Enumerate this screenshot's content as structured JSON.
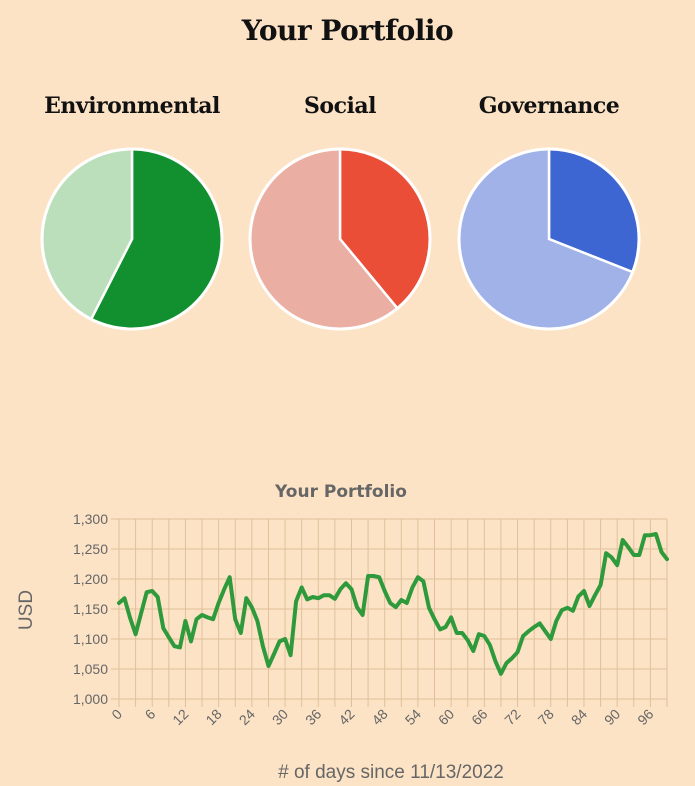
{
  "page_title": "Your Portfolio",
  "colors": {
    "background": "#fde3c6",
    "environmental_main": "#129030",
    "environmental_light": "#bbdfbb",
    "social_main": "#ea4e37",
    "social_light": "#ebaea3",
    "governance_main": "#3e66d3",
    "governance_light": "#a1b2e8",
    "line": "#2e9a3c",
    "grid": "#e0c09b"
  },
  "chart_data": [
    {
      "type": "pie",
      "title": "Environmental",
      "values": [
        57.5,
        42.5
      ]
    },
    {
      "type": "pie",
      "title": "Social",
      "values": [
        39,
        61
      ]
    },
    {
      "type": "pie",
      "title": "Governance",
      "values": [
        31,
        69
      ]
    },
    {
      "type": "line",
      "title": "Your Portfolio",
      "xlabel": "# of days since 11/13/2022",
      "ylabel": "USD",
      "ylim": [
        1000,
        1300
      ],
      "xlim": [
        0,
        99
      ],
      "x_ticks": [
        "0",
        "6",
        "12",
        "18",
        "24",
        "30",
        "36",
        "42",
        "48",
        "54",
        "60",
        "66",
        "72",
        "78",
        "84",
        "90",
        "96"
      ],
      "y_ticks": [
        "1,000",
        "1,050",
        "1,100",
        "1,150",
        "1,200",
        "1,250",
        "1,300"
      ],
      "grid": true,
      "x": [
        0,
        1,
        2,
        3,
        4,
        5,
        6,
        7,
        8,
        9,
        10,
        11,
        12,
        13,
        14,
        15,
        16,
        17,
        18,
        19,
        20,
        21,
        22,
        23,
        24,
        25,
        26,
        27,
        28,
        29,
        30,
        31,
        32,
        33,
        34,
        35,
        36,
        37,
        38,
        39,
        40,
        41,
        42,
        43,
        44,
        45,
        46,
        47,
        48,
        49,
        50,
        51,
        52,
        53,
        54,
        55,
        56,
        57,
        58,
        59,
        60,
        61,
        62,
        63,
        64,
        65,
        66,
        67,
        68,
        69,
        70,
        71,
        72,
        73,
        74,
        75,
        76,
        77,
        78,
        79,
        80,
        81,
        82,
        83,
        84,
        85,
        86,
        87,
        88,
        89,
        90,
        91,
        92,
        93,
        94,
        95,
        96,
        97,
        98,
        99
      ],
      "series": [
        {
          "values": [
            1160,
            1168,
            1135,
            1108,
            1143,
            1178,
            1180,
            1170,
            1118,
            1103,
            1088,
            1086,
            1130,
            1096,
            1133,
            1140,
            1136,
            1133,
            1160,
            1183,
            1203,
            1133,
            1110,
            1168,
            1153,
            1130,
            1088,
            1055,
            1075,
            1096,
            1100,
            1073,
            1163,
            1186,
            1166,
            1170,
            1168,
            1173,
            1173,
            1167,
            1183,
            1193,
            1183,
            1153,
            1140,
            1205,
            1205,
            1203,
            1180,
            1160,
            1153,
            1165,
            1160,
            1186,
            1203,
            1196,
            1152,
            1133,
            1116,
            1120,
            1136,
            1110,
            1110,
            1098,
            1080,
            1108,
            1105,
            1090,
            1063,
            1042,
            1060,
            1068,
            1078,
            1105,
            1113,
            1120,
            1126,
            1113,
            1100,
            1130,
            1148,
            1152,
            1147,
            1171,
            1180,
            1155,
            1173,
            1190,
            1243,
            1236,
            1223,
            1265,
            1253,
            1240,
            1240,
            1273,
            1273,
            1275,
            1245,
            1233
          ]
        }
      ]
    }
  ]
}
